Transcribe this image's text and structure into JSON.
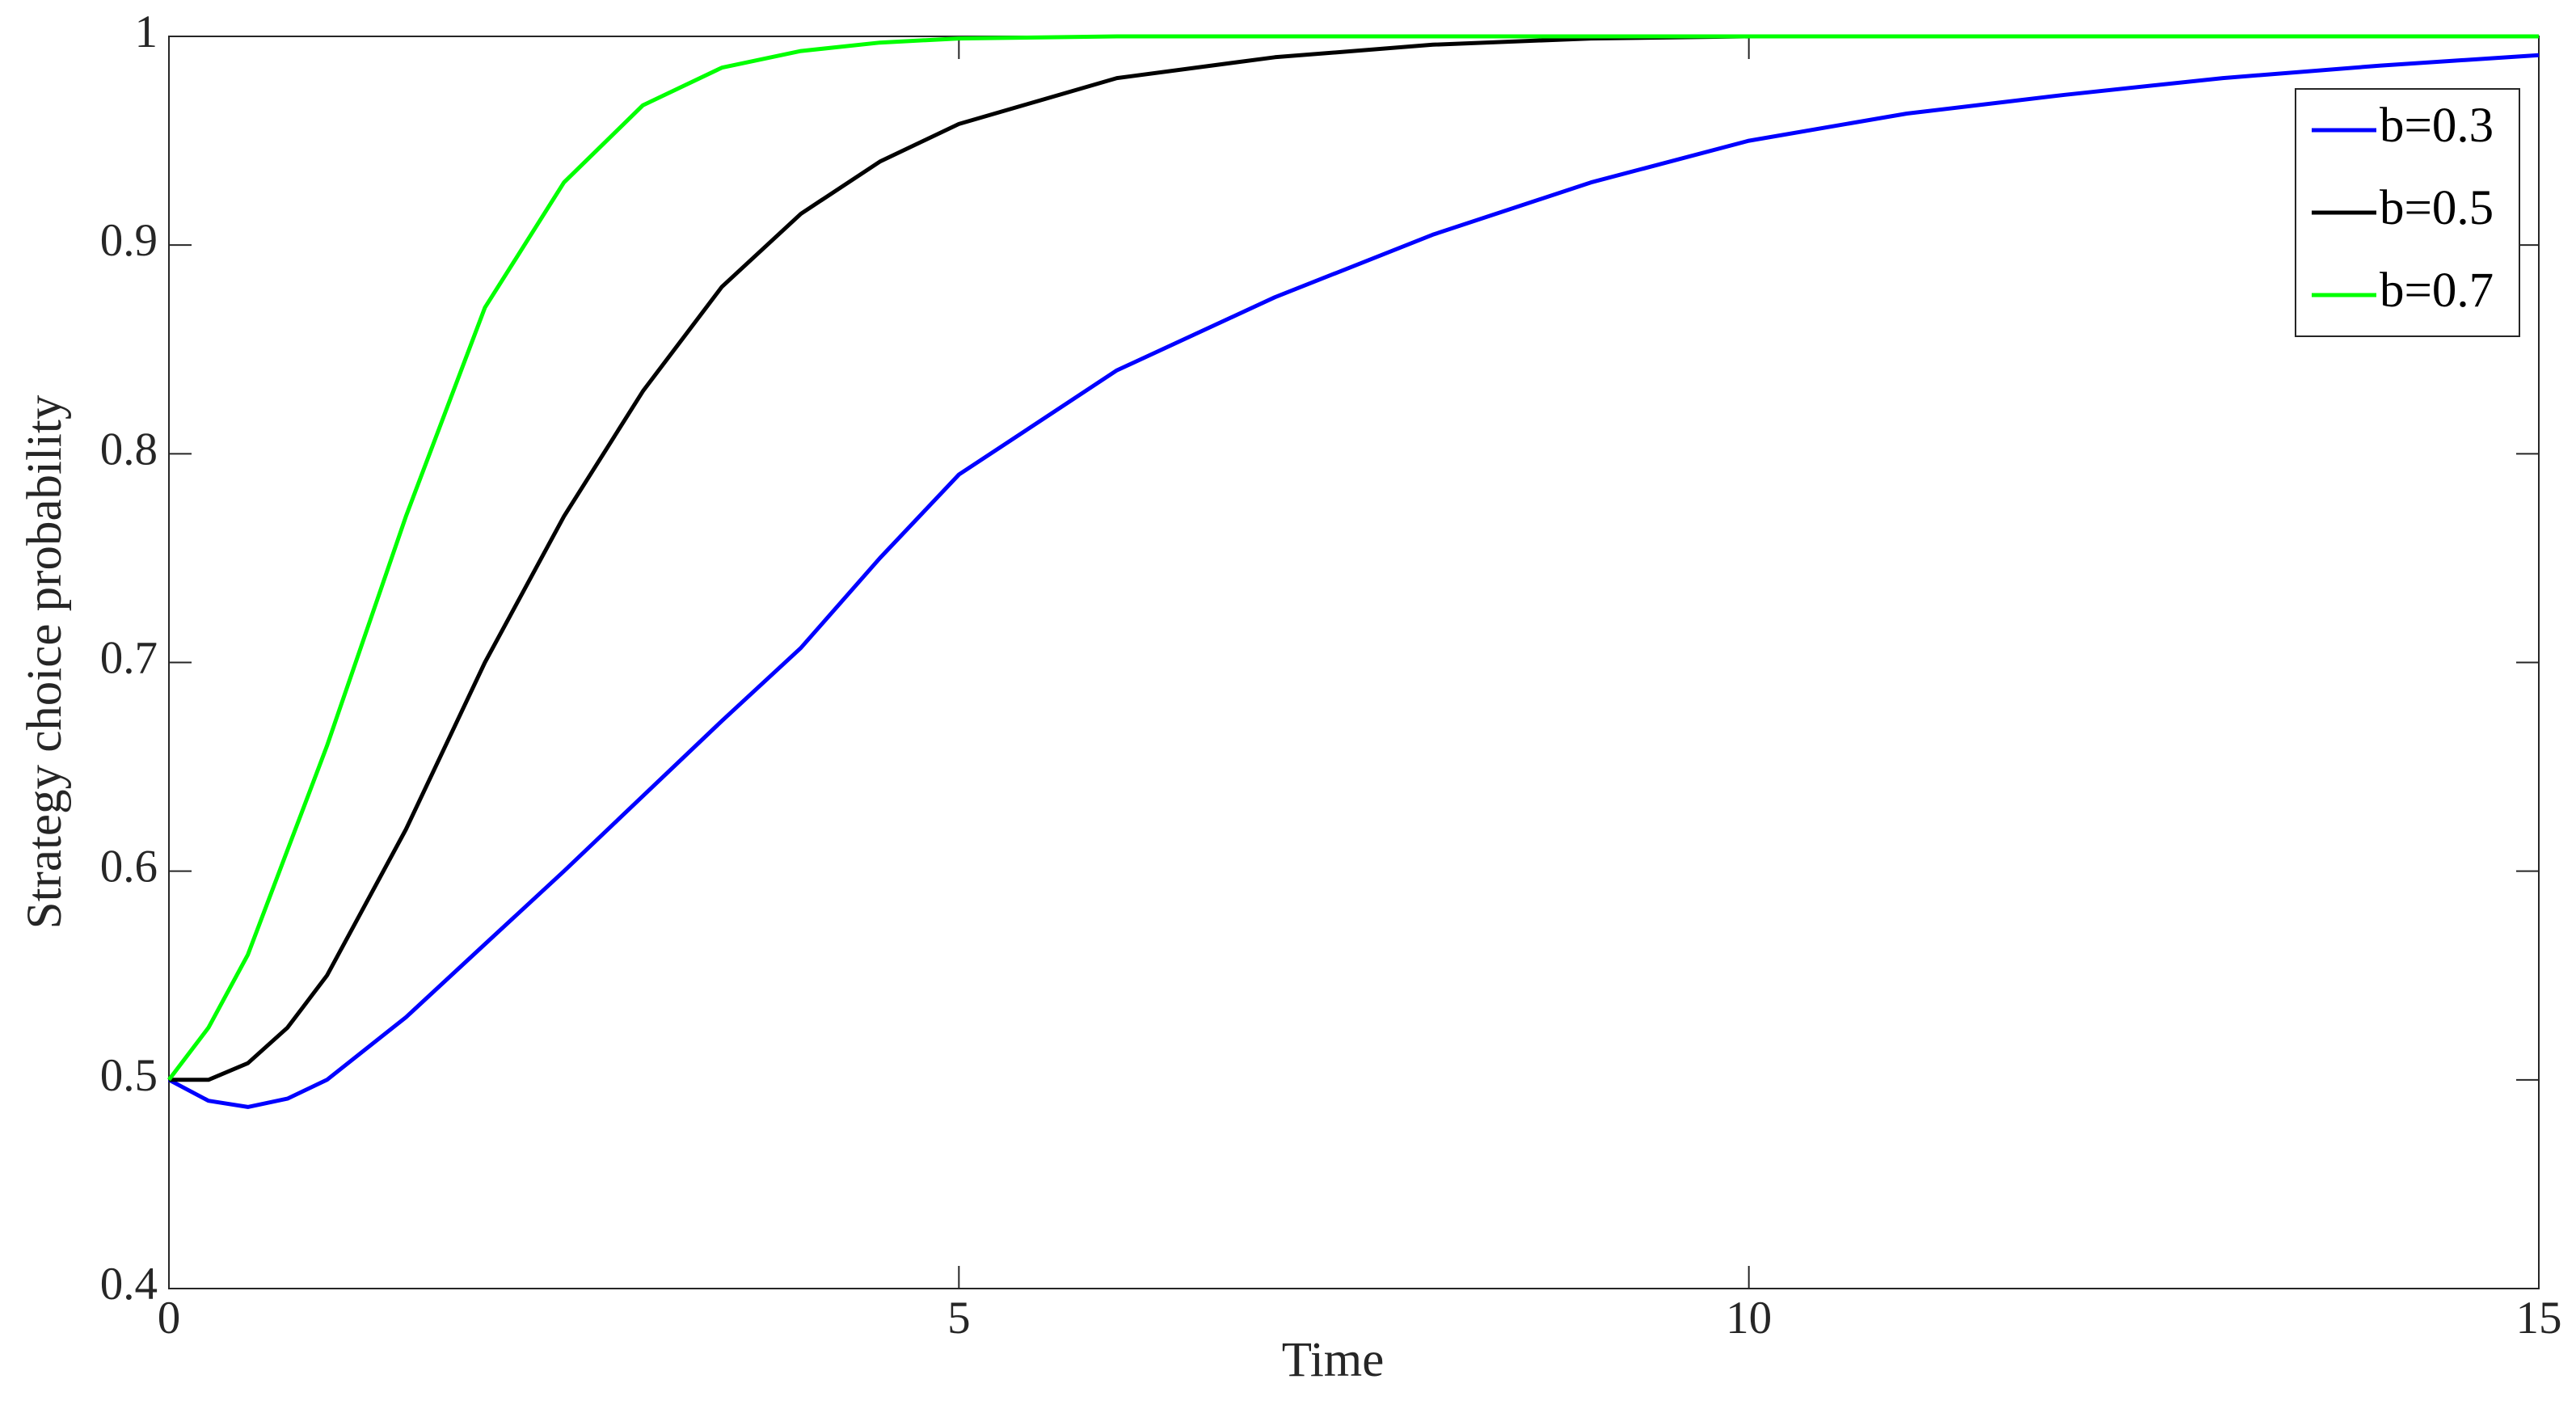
{
  "chart_data": {
    "type": "line",
    "x_label": "Time",
    "y_label": "Strategy choice probability",
    "x": [
      0,
      0.25,
      0.5,
      0.75,
      1,
      1.5,
      2,
      2.5,
      3,
      3.5,
      4,
      4.5,
      5,
      6,
      7,
      8,
      9,
      10,
      11,
      12,
      13,
      14,
      15
    ],
    "series": [
      {
        "name": "b=0.3",
        "color": "#0000ff",
        "values": [
          0.5,
          0.49,
          0.487,
          0.491,
          0.5,
          0.53,
          0.565,
          0.6,
          0.636,
          0.672,
          0.707,
          0.75,
          0.79,
          0.84,
          0.875,
          0.905,
          0.93,
          0.95,
          0.963,
          0.972,
          0.98,
          0.986,
          0.991
        ]
      },
      {
        "name": "b=0.5",
        "color": "#000000",
        "values": [
          0.5,
          0.5,
          0.508,
          0.525,
          0.55,
          0.62,
          0.7,
          0.77,
          0.83,
          0.88,
          0.915,
          0.94,
          0.958,
          0.98,
          0.99,
          0.996,
          0.999,
          1,
          1,
          1,
          1,
          1,
          1
        ]
      },
      {
        "name": "b=0.7",
        "color": "#00ff00",
        "values": [
          0.5,
          0.525,
          0.56,
          0.61,
          0.66,
          0.77,
          0.87,
          0.93,
          0.967,
          0.985,
          0.993,
          0.997,
          0.999,
          1,
          1,
          1,
          1,
          1,
          1,
          1,
          1,
          1,
          1
        ]
      }
    ],
    "xlim": [
      0,
      15
    ],
    "xticks": [
      0,
      5,
      10,
      15
    ],
    "ylim": [
      0.4,
      1
    ],
    "yticks": [
      0.4,
      0.5,
      0.6,
      0.7,
      0.8,
      0.9,
      1
    ],
    "grid": false,
    "legend": "upper right"
  }
}
